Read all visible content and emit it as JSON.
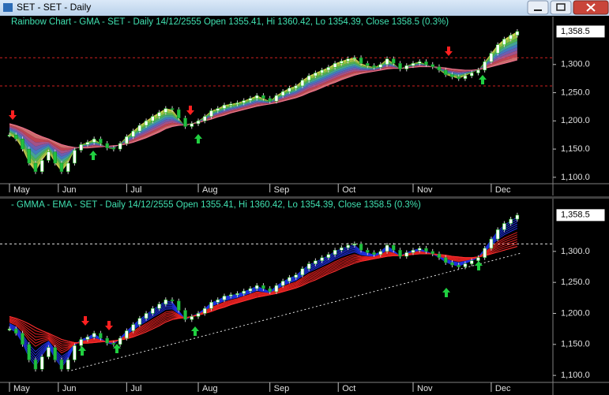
{
  "window": {
    "title": "SET - SET - Daily"
  },
  "chart_data": [
    {
      "type": "rainbow",
      "title": "Rainbow Chart  - GMA - SET - Daily 14/12/2555 Open 1355.41, Hi 1360.42, Lo 1354.39, Close 1358.5 (0.3%)",
      "x": [
        0,
        2,
        4,
        6,
        8,
        10,
        12,
        14,
        16,
        18,
        20,
        22,
        24,
        26,
        28,
        30,
        32,
        34,
        36,
        38,
        40,
        42,
        44,
        46,
        48,
        50,
        52,
        54,
        56,
        58,
        60,
        62,
        64,
        66,
        68,
        70,
        72,
        74,
        76,
        78,
        80,
        82,
        84,
        86,
        88,
        90,
        92,
        94,
        96,
        98,
        100,
        102,
        104,
        106,
        108,
        110,
        112,
        114,
        116,
        118,
        120,
        122,
        124,
        126,
        128,
        130,
        132,
        134,
        136,
        138,
        140,
        142,
        144,
        146,
        148,
        150,
        152,
        154,
        156
      ],
      "values": [
        1175,
        1168,
        1150,
        1125,
        1110,
        1130,
        1145,
        1125,
        1110,
        1125,
        1148,
        1158,
        1162,
        1168,
        1160,
        1152,
        1150,
        1160,
        1172,
        1182,
        1192,
        1200,
        1208,
        1215,
        1222,
        1220,
        1205,
        1190,
        1195,
        1200,
        1208,
        1218,
        1222,
        1228,
        1230,
        1232,
        1236,
        1240,
        1245,
        1240,
        1235,
        1245,
        1252,
        1258,
        1262,
        1272,
        1280,
        1285,
        1290,
        1295,
        1302,
        1306,
        1310,
        1312,
        1302,
        1298,
        1295,
        1300,
        1310,
        1302,
        1292,
        1298,
        1302,
        1305,
        1300,
        1296,
        1290,
        1282,
        1278,
        1275,
        1280,
        1285,
        1290,
        1305,
        1320,
        1335,
        1345,
        1352,
        1358.5
      ],
      "ma_values": [
        1195,
        1192,
        1188,
        1183,
        1177,
        1172,
        1168,
        1163,
        1158,
        1155,
        1153,
        1152,
        1152,
        1153,
        1154,
        1155,
        1156,
        1157,
        1159,
        1162,
        1166,
        1170,
        1175,
        1180,
        1186,
        1190,
        1192,
        1193,
        1195,
        1197,
        1200,
        1203,
        1207,
        1210,
        1214,
        1217,
        1220,
        1223,
        1226,
        1228,
        1230,
        1232,
        1235,
        1238,
        1241,
        1245,
        1250,
        1254,
        1259,
        1264,
        1268,
        1273,
        1277,
        1281,
        1284,
        1286,
        1288,
        1290,
        1292,
        1293,
        1293,
        1294,
        1295,
        1296,
        1296,
        1296,
        1295,
        1294,
        1292,
        1291,
        1290,
        1290,
        1291,
        1293,
        1296,
        1299,
        1302,
        1305,
        1308
      ],
      "xlim": [
        0,
        157
      ],
      "xticks": [
        {
          "value": 0,
          "label": "May"
        },
        {
          "value": 15,
          "label": "Jun"
        },
        {
          "value": 36,
          "label": "Jul"
        },
        {
          "value": 58,
          "label": "Aug"
        },
        {
          "value": 80,
          "label": "Sep"
        },
        {
          "value": 101,
          "label": "Oct"
        },
        {
          "value": 124,
          "label": "Nov"
        },
        {
          "value": 148,
          "label": "Dec"
        }
      ],
      "ylim": [
        1090,
        1385
      ],
      "yticks": [
        {
          "value": 1100,
          "label": "1,100.0"
        },
        {
          "value": 1150,
          "label": "1,150.0"
        },
        {
          "value": 1200,
          "label": "1,200.0"
        },
        {
          "value": 1250,
          "label": "1,250.0"
        },
        {
          "value": 1300,
          "label": "1,300.0"
        }
      ],
      "last_label": {
        "value": 1358.5,
        "label": "1,358.5"
      },
      "hlines": [
        1312,
        1262
      ],
      "hline_color": "#d02020"
    },
    {
      "type": "gmma",
      "title": "- GMMA - EMA - SET - Daily 14/12/2555 Open 1355.41, Hi 1360.42, Lo 1354.39, Close 1358.5 (0.3%)",
      "x": [
        0,
        2,
        4,
        6,
        8,
        10,
        12,
        14,
        16,
        18,
        20,
        22,
        24,
        26,
        28,
        30,
        32,
        34,
        36,
        38,
        40,
        42,
        44,
        46,
        48,
        50,
        52,
        54,
        56,
        58,
        60,
        62,
        64,
        66,
        68,
        70,
        72,
        74,
        76,
        78,
        80,
        82,
        84,
        86,
        88,
        90,
        92,
        94,
        96,
        98,
        100,
        102,
        104,
        106,
        108,
        110,
        112,
        114,
        116,
        118,
        120,
        122,
        124,
        126,
        128,
        130,
        132,
        134,
        136,
        138,
        140,
        142,
        144,
        146,
        148,
        150,
        152,
        154,
        156
      ],
      "values": [
        1175,
        1168,
        1150,
        1125,
        1110,
        1130,
        1145,
        1125,
        1110,
        1125,
        1148,
        1158,
        1162,
        1168,
        1160,
        1152,
        1150,
        1160,
        1172,
        1182,
        1192,
        1200,
        1208,
        1215,
        1222,
        1220,
        1205,
        1190,
        1195,
        1200,
        1208,
        1218,
        1222,
        1228,
        1230,
        1232,
        1236,
        1240,
        1245,
        1240,
        1235,
        1245,
        1252,
        1258,
        1262,
        1272,
        1280,
        1285,
        1290,
        1295,
        1302,
        1306,
        1310,
        1312,
        1302,
        1298,
        1295,
        1300,
        1310,
        1302,
        1292,
        1298,
        1302,
        1305,
        1300,
        1296,
        1290,
        1282,
        1278,
        1275,
        1280,
        1285,
        1290,
        1305,
        1320,
        1335,
        1345,
        1352,
        1358.5
      ],
      "ma_values": [
        1195,
        1192,
        1188,
        1183,
        1177,
        1172,
        1168,
        1163,
        1158,
        1155,
        1153,
        1152,
        1152,
        1153,
        1154,
        1155,
        1156,
        1157,
        1159,
        1162,
        1166,
        1170,
        1175,
        1180,
        1186,
        1190,
        1192,
        1193,
        1195,
        1197,
        1200,
        1203,
        1207,
        1210,
        1214,
        1217,
        1220,
        1223,
        1226,
        1228,
        1230,
        1232,
        1235,
        1238,
        1241,
        1245,
        1250,
        1254,
        1259,
        1264,
        1268,
        1273,
        1277,
        1281,
        1284,
        1286,
        1288,
        1290,
        1292,
        1293,
        1293,
        1294,
        1295,
        1296,
        1296,
        1296,
        1295,
        1294,
        1292,
        1291,
        1290,
        1290,
        1291,
        1293,
        1296,
        1299,
        1302,
        1305,
        1308
      ],
      "xlim": [
        0,
        157
      ],
      "xticks": [
        {
          "value": 0,
          "label": "May"
        },
        {
          "value": 15,
          "label": "Jun"
        },
        {
          "value": 36,
          "label": "Jul"
        },
        {
          "value": 58,
          "label": "Aug"
        },
        {
          "value": 80,
          "label": "Sep"
        },
        {
          "value": 101,
          "label": "Oct"
        },
        {
          "value": 124,
          "label": "Nov"
        },
        {
          "value": 148,
          "label": "Dec"
        }
      ],
      "ylim": [
        1090,
        1385
      ],
      "yticks": [
        {
          "value": 1100,
          "label": "1,100.0"
        },
        {
          "value": 1150,
          "label": "1,150.0"
        },
        {
          "value": 1200,
          "label": "1,200.0"
        },
        {
          "value": 1250,
          "label": "1,250.0"
        },
        {
          "value": 1300,
          "label": "1,300.0"
        }
      ],
      "last_label": {
        "value": 1358.5,
        "label": "1,358.5"
      },
      "hlines": [
        1312
      ],
      "hline_color": "#e0e0e0",
      "trendline": {
        "x": [
          19,
          157
        ],
        "y": [
          1108,
          1297
        ]
      }
    }
  ]
}
